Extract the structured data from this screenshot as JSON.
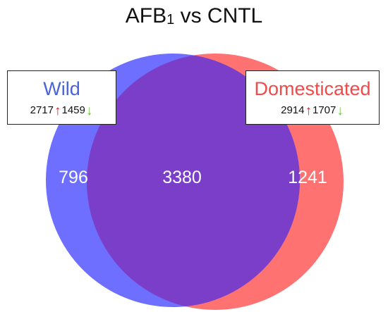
{
  "title": {
    "main": "AFB",
    "subscript": "1",
    "rest": " vs CNTL"
  },
  "sets": {
    "wild": {
      "name": "Wild",
      "up_count": "2717",
      "down_count": "1459",
      "unique_count": "796",
      "color": "#6666ff"
    },
    "domesticated": {
      "name": "Domesticated",
      "up_count": "2914",
      "down_count": "1707",
      "unique_count": "1241",
      "color": "#ff6a6a"
    }
  },
  "overlap": {
    "count": "3380",
    "color": "#7a3ec8"
  },
  "colors": {
    "up_arrow": "#e0201e",
    "down_arrow": "#6cc23a"
  }
}
